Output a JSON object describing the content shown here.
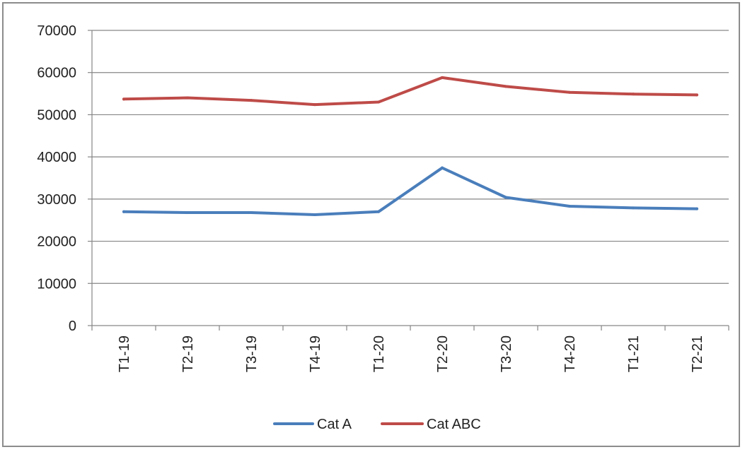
{
  "chart_data": {
    "type": "line",
    "categories": [
      "T1-19",
      "T2-19",
      "T3-19",
      "T4-19",
      "T1-20",
      "T2-20",
      "T3-20",
      "T4-20",
      "T1-21",
      "T2-21"
    ],
    "series": [
      {
        "name": "Cat A",
        "color": "#4a7ebb",
        "values": [
          27000,
          26800,
          26800,
          26300,
          27000,
          37400,
          30400,
          28300,
          27900,
          27700
        ]
      },
      {
        "name": "Cat ABC",
        "color": "#be4b48",
        "values": [
          53700,
          54000,
          53400,
          52400,
          53000,
          58800,
          56700,
          55300,
          54900,
          54700
        ]
      }
    ],
    "ylim": [
      0,
      70000
    ],
    "yticks": [
      0,
      10000,
      20000,
      30000,
      40000,
      50000,
      60000,
      70000
    ],
    "grid": true,
    "legend_position": "bottom",
    "axis_color": "#868686",
    "grid_color": "#868686"
  }
}
